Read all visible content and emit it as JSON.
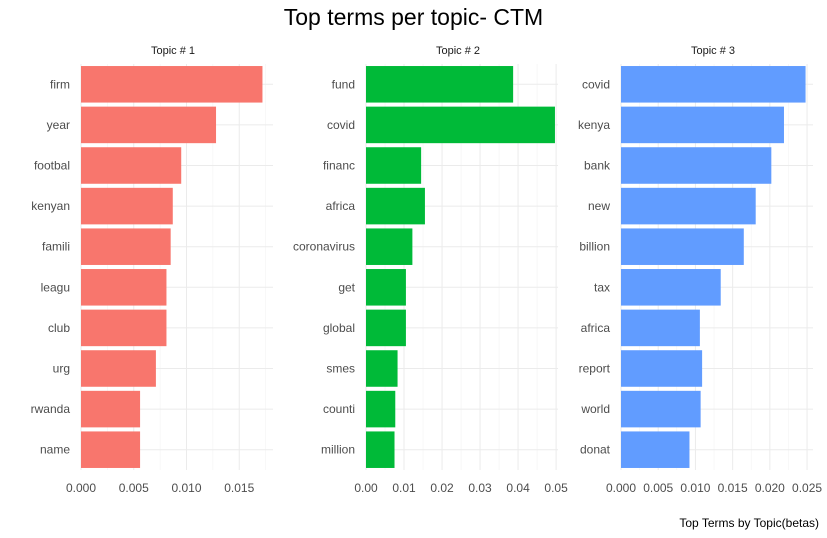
{
  "title": "Top terms per topic- CTM",
  "caption": "Top Terms by Topic(betas)",
  "chart_data": [
    {
      "type": "bar",
      "orientation": "horizontal",
      "panel": "Topic # 1",
      "color": "#F8766D",
      "categories": [
        "firm",
        "year",
        "footbal",
        "kenyan",
        "famili",
        "leagu",
        "club",
        "urg",
        "rwanda",
        "name"
      ],
      "values": [
        0.0172,
        0.0128,
        0.0095,
        0.0087,
        0.0085,
        0.0081,
        0.0081,
        0.0071,
        0.0056,
        0.0056
      ],
      "xlim": [
        0,
        0.0182
      ],
      "ticks": [
        0.0,
        0.005,
        0.01,
        0.015
      ],
      "tick_labels": [
        "0.000",
        "0.005",
        "0.010",
        "0.015"
      ]
    },
    {
      "type": "bar",
      "orientation": "horizontal",
      "panel": "Topic # 2",
      "color": "#00BA38",
      "categories": [
        "fund",
        "covid",
        "financ",
        "africa",
        "coronavirus",
        "get",
        "global",
        "smes",
        "counti",
        "million"
      ],
      "values": [
        0.0387,
        0.0497,
        0.0145,
        0.0155,
        0.0122,
        0.0105,
        0.0105,
        0.0083,
        0.0077,
        0.0075
      ],
      "xlim": [
        0,
        0.0505
      ],
      "ticks": [
        0,
        0.01,
        0.02,
        0.03,
        0.04,
        0.05
      ],
      "tick_labels": [
        "0.00",
        "0.01",
        "0.02",
        "0.03",
        "0.04",
        "0.05"
      ]
    },
    {
      "type": "bar",
      "orientation": "horizontal",
      "panel": "Topic # 3",
      "color": "#619CFF",
      "categories": [
        "covid",
        "kenya",
        "bank",
        "new",
        "billion",
        "tax",
        "africa",
        "report",
        "world",
        "donat"
      ],
      "values": [
        0.0248,
        0.0219,
        0.0202,
        0.0181,
        0.0165,
        0.0134,
        0.0106,
        0.0109,
        0.0107,
        0.0092
      ],
      "xlim": [
        0,
        0.0258
      ],
      "ticks": [
        0,
        0.005,
        0.01,
        0.015,
        0.02,
        0.025
      ],
      "tick_labels": [
        "0.000",
        "0.005",
        "0.010",
        "0.015",
        "0.020",
        "0.025"
      ]
    }
  ]
}
